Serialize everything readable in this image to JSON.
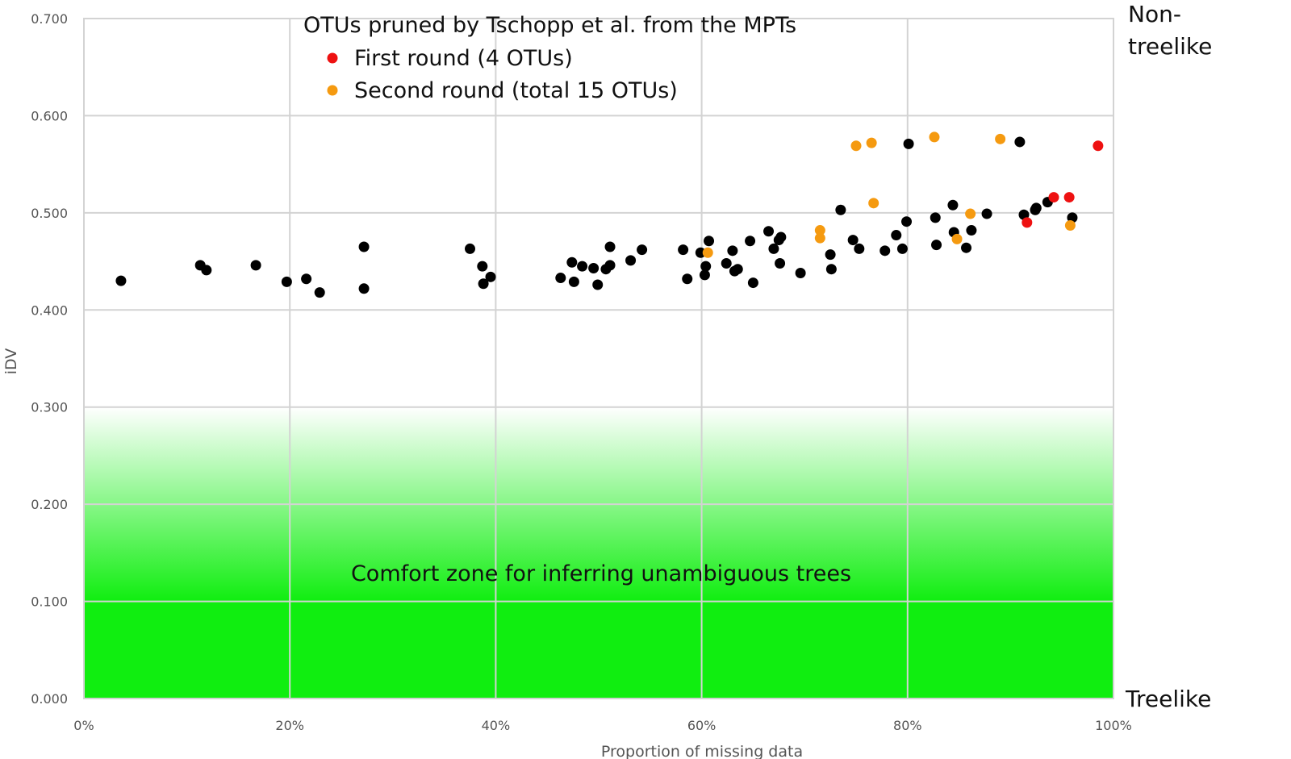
{
  "chart_data": {
    "type": "scatter",
    "xlabel": "Proportion of missing data",
    "ylabel": "iDV",
    "xlim": [
      0,
      1
    ],
    "ylim": [
      0,
      0.7
    ],
    "x_ticks": [
      "0%",
      "20%",
      "40%",
      "60%",
      "80%",
      "100%"
    ],
    "y_ticks": [
      "0.000",
      "0.100",
      "0.200",
      "0.300",
      "0.400",
      "0.500",
      "0.600",
      "0.700"
    ],
    "grid": true,
    "legend": {
      "title": "OTUs pruned by Tschopp et al. from the MPTs",
      "placement": "top-center",
      "entries": [
        {
          "label": "First round (4 OTUs)",
          "color": "#ee1111"
        },
        {
          "label": "Second round (total 15 OTUs)",
          "color": "#f59a10"
        }
      ]
    },
    "annotations": {
      "zone": "Comfort zone for inferring unambiguous trees",
      "top_right": [
        "Non-",
        "treelike"
      ],
      "bottom_right": "Treelike"
    },
    "zone_gradient": {
      "from_y": 0.3,
      "to_y": 0.1,
      "top_color": "#ffffff",
      "bottom_color": "#10ee10"
    },
    "series": [
      {
        "color": "#000000",
        "points": [
          [
            0.036,
            0.43
          ],
          [
            0.113,
            0.446
          ],
          [
            0.119,
            0.441
          ],
          [
            0.167,
            0.446
          ],
          [
            0.197,
            0.429
          ],
          [
            0.216,
            0.432
          ],
          [
            0.229,
            0.418
          ],
          [
            0.272,
            0.465
          ],
          [
            0.272,
            0.422
          ],
          [
            0.375,
            0.463
          ],
          [
            0.387,
            0.445
          ],
          [
            0.388,
            0.427
          ],
          [
            0.395,
            0.434
          ],
          [
            0.463,
            0.433
          ],
          [
            0.474,
            0.449
          ],
          [
            0.476,
            0.429
          ],
          [
            0.484,
            0.445
          ],
          [
            0.495,
            0.443
          ],
          [
            0.499,
            0.426
          ],
          [
            0.507,
            0.442
          ],
          [
            0.511,
            0.446
          ],
          [
            0.511,
            0.465
          ],
          [
            0.531,
            0.451
          ],
          [
            0.542,
            0.462
          ],
          [
            0.582,
            0.462
          ],
          [
            0.586,
            0.432
          ],
          [
            0.599,
            0.459
          ],
          [
            0.603,
            0.436
          ],
          [
            0.604,
            0.445
          ],
          [
            0.607,
            0.471
          ],
          [
            0.624,
            0.448
          ],
          [
            0.63,
            0.461
          ],
          [
            0.632,
            0.44
          ],
          [
            0.635,
            0.442
          ],
          [
            0.647,
            0.471
          ],
          [
            0.65,
            0.428
          ],
          [
            0.665,
            0.481
          ],
          [
            0.67,
            0.463
          ],
          [
            0.675,
            0.472
          ],
          [
            0.676,
            0.448
          ],
          [
            0.677,
            0.475
          ],
          [
            0.696,
            0.438
          ],
          [
            0.725,
            0.457
          ],
          [
            0.726,
            0.442
          ],
          [
            0.735,
            0.503
          ],
          [
            0.747,
            0.472
          ],
          [
            0.753,
            0.463
          ],
          [
            0.778,
            0.461
          ],
          [
            0.789,
            0.477
          ],
          [
            0.795,
            0.463
          ],
          [
            0.799,
            0.491
          ],
          [
            0.801,
            0.571
          ],
          [
            0.827,
            0.495
          ],
          [
            0.828,
            0.467
          ],
          [
            0.844,
            0.508
          ],
          [
            0.845,
            0.48
          ],
          [
            0.857,
            0.464
          ],
          [
            0.862,
            0.482
          ],
          [
            0.877,
            0.499
          ],
          [
            0.909,
            0.573
          ],
          [
            0.913,
            0.498
          ],
          [
            0.924,
            0.503
          ],
          [
            0.925,
            0.505
          ],
          [
            0.936,
            0.511
          ],
          [
            0.96,
            0.495
          ]
        ]
      },
      {
        "name": "First round (4 OTUs)",
        "color": "#ee1111",
        "points": [
          [
            0.916,
            0.49
          ],
          [
            0.942,
            0.516
          ],
          [
            0.957,
            0.516
          ],
          [
            0.985,
            0.569
          ]
        ]
      },
      {
        "name": "Second round (total 15 OTUs)",
        "color": "#f59a10",
        "points": [
          [
            0.606,
            0.459
          ],
          [
            0.715,
            0.482
          ],
          [
            0.715,
            0.474
          ],
          [
            0.75,
            0.569
          ],
          [
            0.765,
            0.572
          ],
          [
            0.767,
            0.51
          ],
          [
            0.826,
            0.578
          ],
          [
            0.848,
            0.473
          ],
          [
            0.861,
            0.499
          ],
          [
            0.89,
            0.576
          ],
          [
            0.958,
            0.487
          ]
        ]
      }
    ]
  }
}
